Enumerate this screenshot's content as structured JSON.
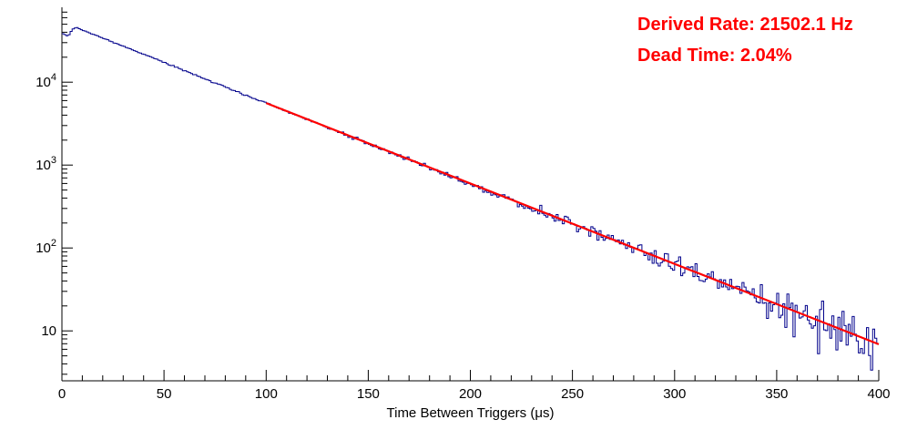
{
  "annotations": {
    "derived_rate": "Derived Rate: 21502.1 Hz",
    "dead_time": "Dead Time: 2.04%",
    "color": "#ff0000"
  },
  "chart_data": {
    "type": "histogram",
    "title": "",
    "xlabel": "Time Between Triggers (μs)",
    "ylabel": "",
    "x_range": [
      0,
      400
    ],
    "y_scale": "log",
    "y_range": [
      2.5,
      80000
    ],
    "bin_width_us": 1,
    "x_major_ticks": [
      0,
      50,
      100,
      150,
      200,
      250,
      300,
      350,
      400
    ],
    "x_minor_tick_step": 10,
    "y_major_ticks": [
      10,
      100,
      1000,
      10000
    ],
    "grid": false,
    "legend": "none",
    "histogram_color": "#00008b",
    "axis_color": "#000000",
    "noise_seed": 20,
    "derived_rate_hz": 21502.1,
    "dead_time_percent": 2.04,
    "envelope_points": [
      [
        1,
        38500
      ],
      [
        2,
        36500
      ],
      [
        3,
        36000
      ],
      [
        4,
        38500
      ],
      [
        5,
        43000
      ],
      [
        7,
        46000
      ],
      [
        10,
        42500
      ],
      [
        15,
        38000
      ],
      [
        20,
        34000
      ],
      [
        25,
        30500
      ],
      [
        30,
        27200
      ],
      [
        35,
        24300
      ],
      [
        40,
        21700
      ],
      [
        45,
        19400
      ],
      [
        50,
        17300
      ],
      [
        55,
        15500
      ],
      [
        60,
        13800
      ],
      [
        65,
        12300
      ],
      [
        70,
        11000
      ],
      [
        75,
        9800
      ],
      [
        80,
        8800
      ],
      [
        85,
        7800
      ],
      [
        90,
        7000
      ],
      [
        95,
        6200
      ],
      [
        100,
        5600
      ],
      [
        110,
        4450
      ],
      [
        120,
        3550
      ],
      [
        130,
        2850
      ],
      [
        140,
        2270
      ],
      [
        150,
        1810
      ],
      [
        160,
        1450
      ],
      [
        170,
        1160
      ],
      [
        180,
        925
      ],
      [
        190,
        740
      ],
      [
        200,
        590
      ],
      [
        210,
        470
      ],
      [
        220,
        375
      ],
      [
        230,
        300
      ],
      [
        240,
        240
      ],
      [
        250,
        192
      ],
      [
        260,
        153
      ],
      [
        270,
        122
      ],
      [
        280,
        98
      ],
      [
        290,
        78
      ],
      [
        300,
        62
      ],
      [
        310,
        50
      ],
      [
        320,
        40
      ],
      [
        330,
        32
      ],
      [
        340,
        25
      ],
      [
        350,
        20
      ],
      [
        360,
        16
      ],
      [
        370,
        13
      ],
      [
        380,
        10.5
      ],
      [
        390,
        8.4
      ],
      [
        400,
        6.7
      ]
    ],
    "fit": {
      "type": "exponential",
      "color": "#ff0000",
      "x_start": 100,
      "x_end": 400,
      "y_start": 5600,
      "y_end": 6.9
    }
  }
}
